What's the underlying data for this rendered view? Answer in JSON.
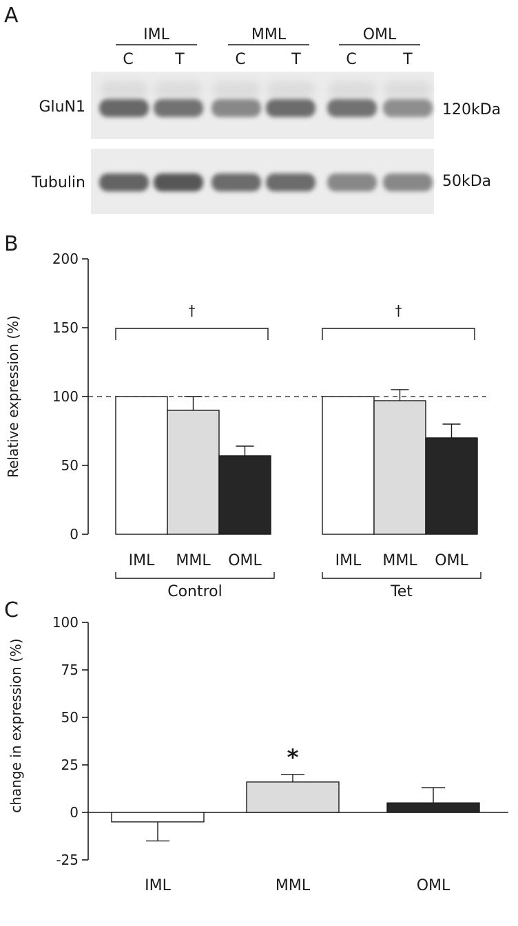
{
  "panel_a": {
    "letter": "A",
    "lane_groups": [
      {
        "name": "IML",
        "lanes": [
          "C",
          "T"
        ]
      },
      {
        "name": "MML",
        "lanes": [
          "C",
          "T"
        ]
      },
      {
        "name": "OML",
        "lanes": [
          "C",
          "T"
        ]
      }
    ],
    "blots": [
      {
        "protein": "GluN1",
        "size": "120kDa",
        "band_intensity": [
          0.6,
          0.55,
          0.45,
          0.58,
          0.55,
          0.42
        ]
      },
      {
        "protein": "Tubulin",
        "size": "50kDa",
        "band_intensity": [
          0.62,
          0.68,
          0.58,
          0.58,
          0.45,
          0.45
        ]
      }
    ]
  },
  "panel_b": {
    "letter": "B",
    "chart_data": {
      "type": "bar",
      "ylabel": "Relative expression (%)",
      "ylim": [
        0,
        200
      ],
      "yticks": [
        0,
        50,
        100,
        150,
        200
      ],
      "reference_line": 100,
      "categories": [
        "IML",
        "MML",
        "OML"
      ],
      "groups": [
        {
          "name": "Control",
          "values": [
            100,
            90,
            57
          ],
          "errors": [
            0,
            10,
            7
          ],
          "annotation": "†"
        },
        {
          "name": "Tet",
          "values": [
            100,
            97,
            70
          ],
          "errors": [
            0,
            8,
            10
          ],
          "annotation": "†"
        }
      ],
      "bar_colors": [
        "#ffffff",
        "#dcdcdc",
        "#262626"
      ]
    }
  },
  "panel_c": {
    "letter": "C",
    "chart_data": {
      "type": "bar",
      "ylabel": "change in expression (%)",
      "ylim": [
        -25,
        100
      ],
      "yticks": [
        -25,
        0,
        25,
        50,
        75,
        100
      ],
      "categories": [
        "IML",
        "MML",
        "OML"
      ],
      "values": [
        -5,
        16,
        5
      ],
      "errors": [
        10,
        4,
        8
      ],
      "annotations": [
        "",
        "*",
        ""
      ],
      "bar_colors": [
        "#ffffff",
        "#dcdcdc",
        "#262626"
      ]
    }
  }
}
